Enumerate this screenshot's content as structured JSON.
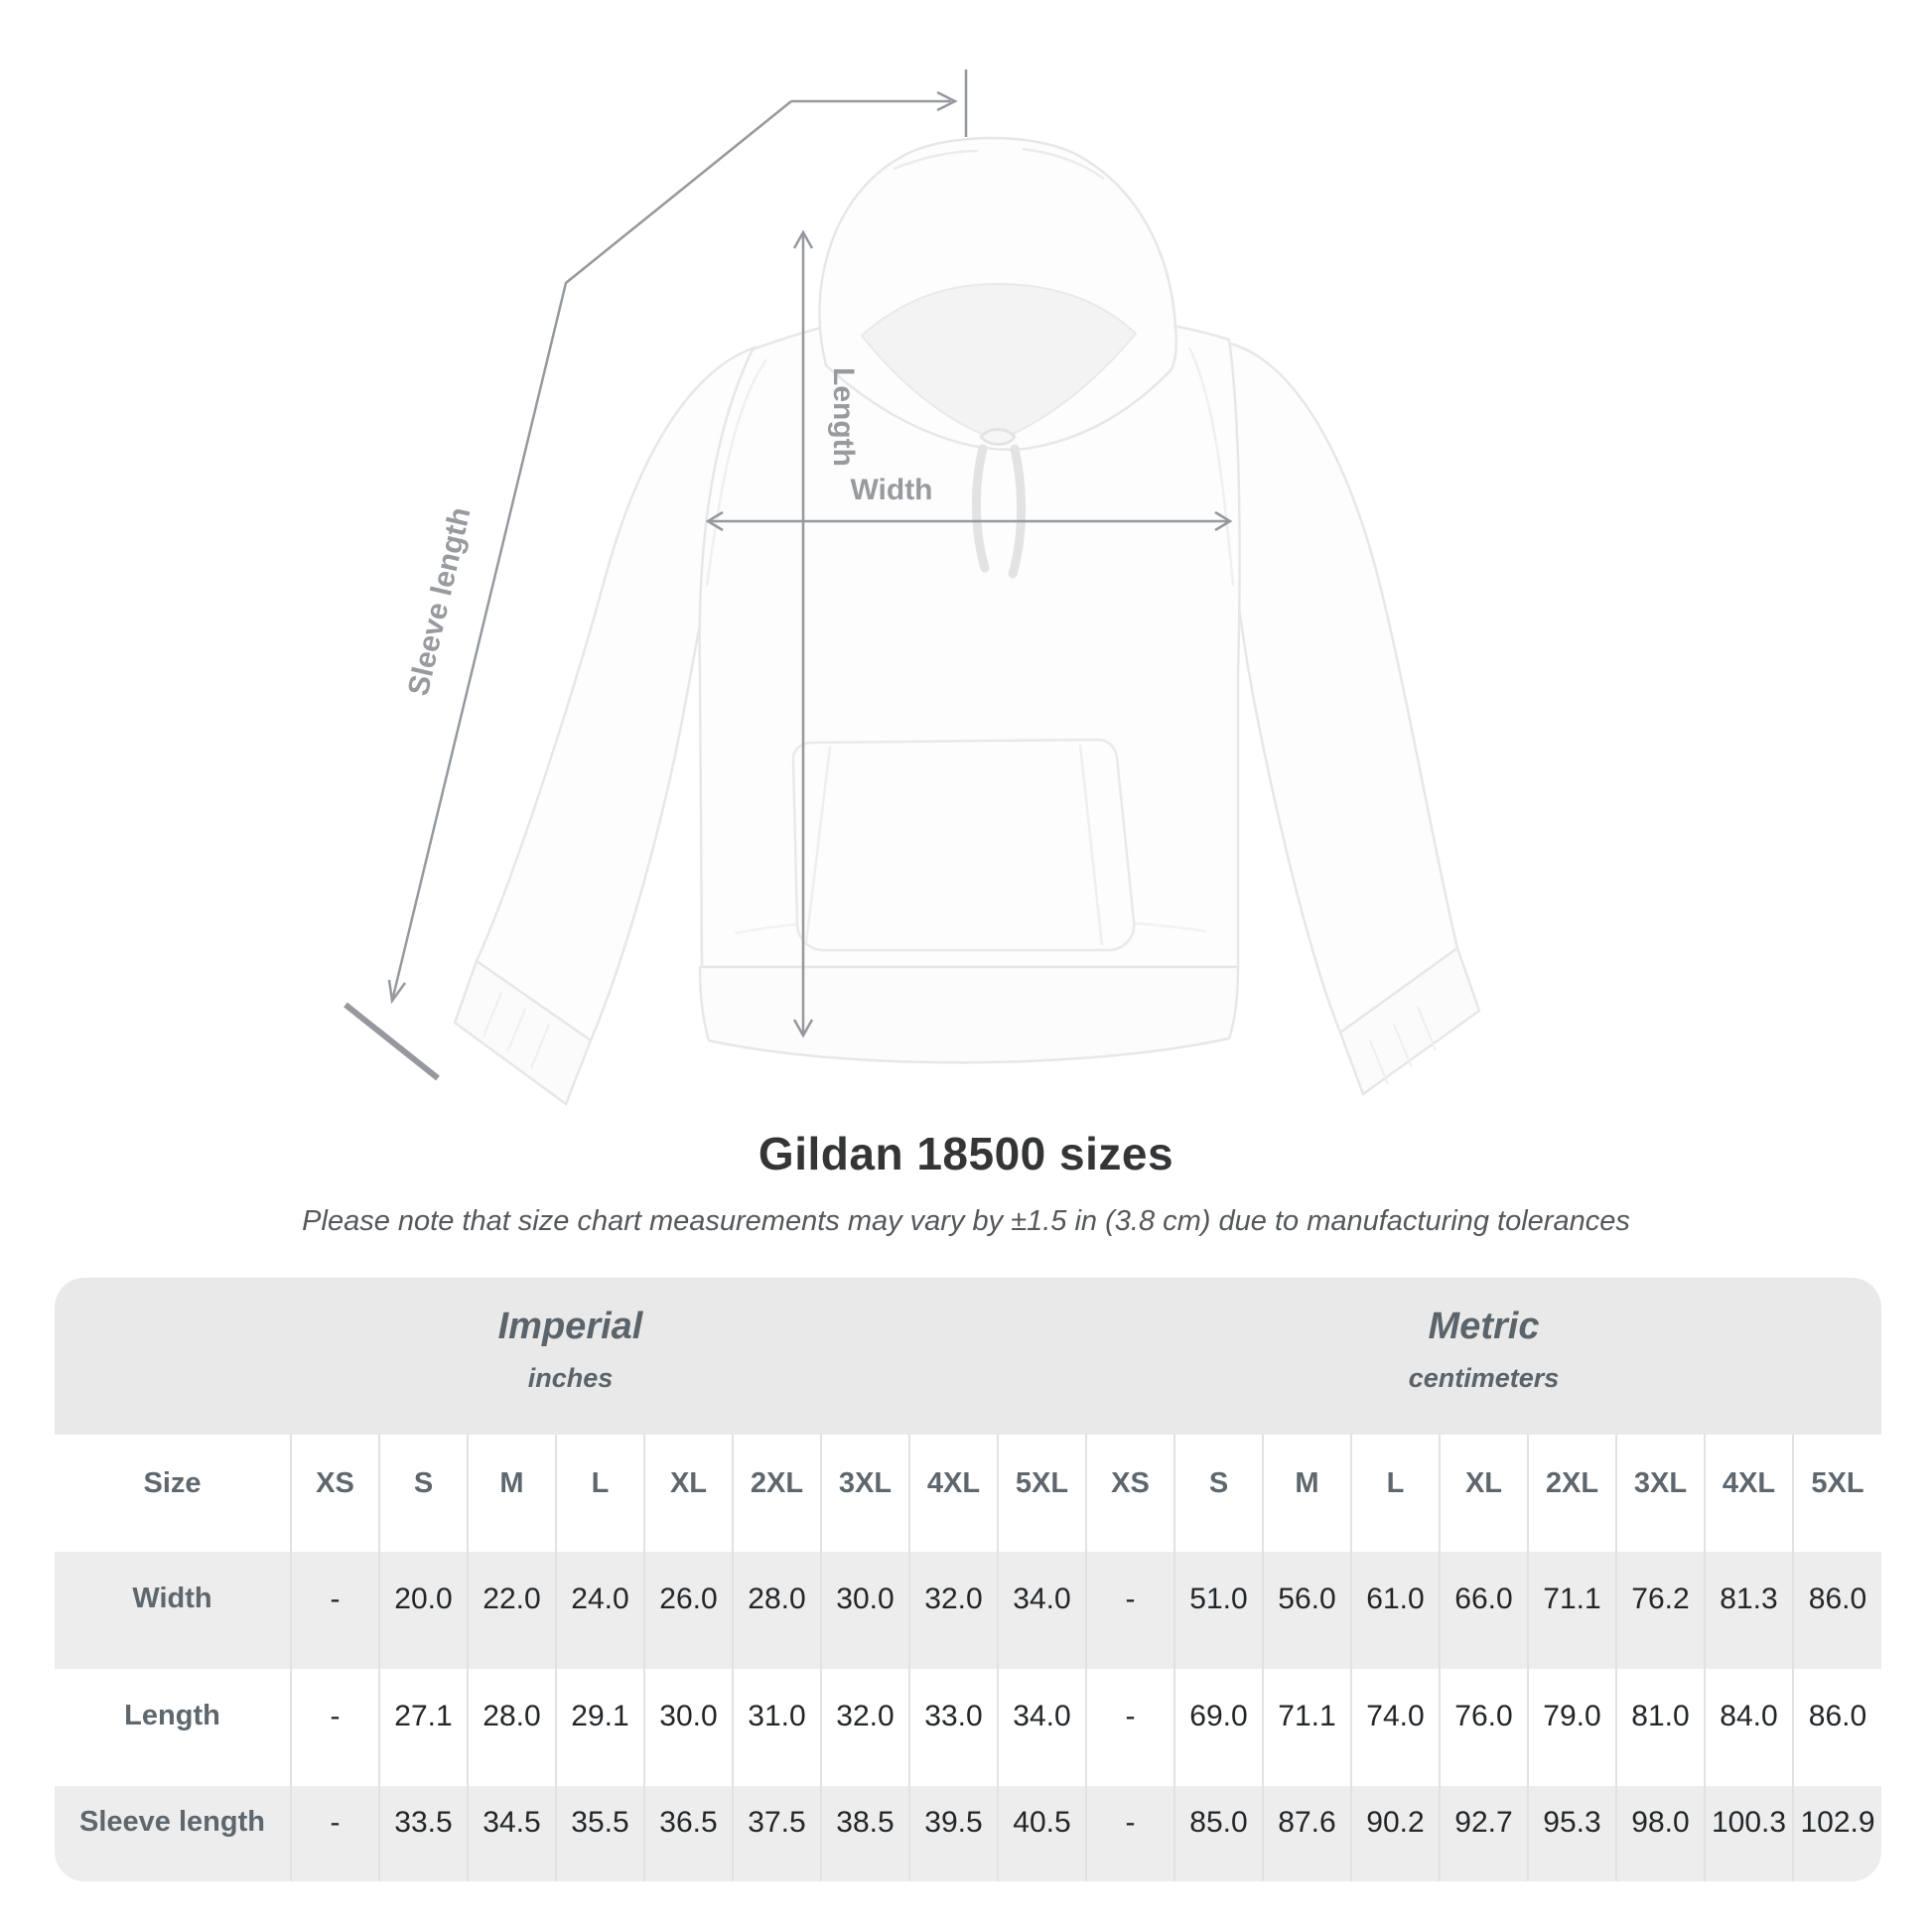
{
  "title": "Gildan 18500 sizes",
  "subtitle": "Please note that size chart measurements may vary by ±1.5 in (3.8 cm) due to manufacturing tolerances",
  "diagram": {
    "labels": {
      "sleeve_length": "Sleeve length",
      "length": "Length",
      "width": "Width"
    }
  },
  "colors": {
    "annotation_gray": "#95999d",
    "band_gray": "#e9e9e9",
    "row_gray": "#ededed",
    "header_text": "#5e676d",
    "value_text": "#222629",
    "title_text": "#333537"
  },
  "table": {
    "size_label": "Size",
    "groups": [
      {
        "label": "Imperial",
        "sub": "inches"
      },
      {
        "label": "Metric",
        "sub": "centimeters"
      }
    ],
    "sizes": [
      "XS",
      "S",
      "M",
      "L",
      "XL",
      "2XL",
      "3XL",
      "4XL",
      "5XL"
    ],
    "rows": [
      {
        "label": "Width",
        "imperial": [
          "-",
          "20.0",
          "22.0",
          "24.0",
          "26.0",
          "28.0",
          "30.0",
          "32.0",
          "34.0"
        ],
        "metric": [
          "-",
          "51.0",
          "56.0",
          "61.0",
          "66.0",
          "71.1",
          "76.2",
          "81.3",
          "86.0"
        ]
      },
      {
        "label": "Length",
        "imperial": [
          "-",
          "27.1",
          "28.0",
          "29.1",
          "30.0",
          "31.0",
          "32.0",
          "33.0",
          "34.0"
        ],
        "metric": [
          "-",
          "69.0",
          "71.1",
          "74.0",
          "76.0",
          "79.0",
          "81.0",
          "84.0",
          "86.0"
        ]
      },
      {
        "label": "Sleeve length",
        "imperial": [
          "-",
          "33.5",
          "34.5",
          "35.5",
          "36.5",
          "37.5",
          "38.5",
          "39.5",
          "40.5"
        ],
        "metric": [
          "-",
          "85.0",
          "87.6",
          "90.2",
          "92.7",
          "95.3",
          "98.0",
          "100.3",
          "102.9"
        ]
      }
    ]
  },
  "chart_data": {
    "type": "table",
    "title": "Gildan 18500 sizes",
    "note": "Please note that size chart measurements may vary by ±1.5 in (3.8 cm) due to manufacturing tolerances",
    "column_groups": [
      "Imperial (inches)",
      "Metric (centimeters)"
    ],
    "columns": [
      "Size",
      "XS",
      "S",
      "M",
      "L",
      "XL",
      "2XL",
      "3XL",
      "4XL",
      "5XL",
      "XS",
      "S",
      "M",
      "L",
      "XL",
      "2XL",
      "3XL",
      "4XL",
      "5XL"
    ],
    "rows": [
      [
        "Width",
        "-",
        20.0,
        22.0,
        24.0,
        26.0,
        28.0,
        30.0,
        32.0,
        34.0,
        "-",
        51.0,
        56.0,
        61.0,
        66.0,
        71.1,
        76.2,
        81.3,
        86.0
      ],
      [
        "Length",
        "-",
        27.1,
        28.0,
        29.1,
        30.0,
        31.0,
        32.0,
        33.0,
        34.0,
        "-",
        69.0,
        71.1,
        74.0,
        76.0,
        79.0,
        81.0,
        84.0,
        86.0
      ],
      [
        "Sleeve length",
        "-",
        33.5,
        34.5,
        35.5,
        36.5,
        37.5,
        38.5,
        39.5,
        40.5,
        "-",
        85.0,
        87.6,
        90.2,
        92.7,
        95.3,
        98.0,
        100.3,
        102.9
      ]
    ]
  }
}
